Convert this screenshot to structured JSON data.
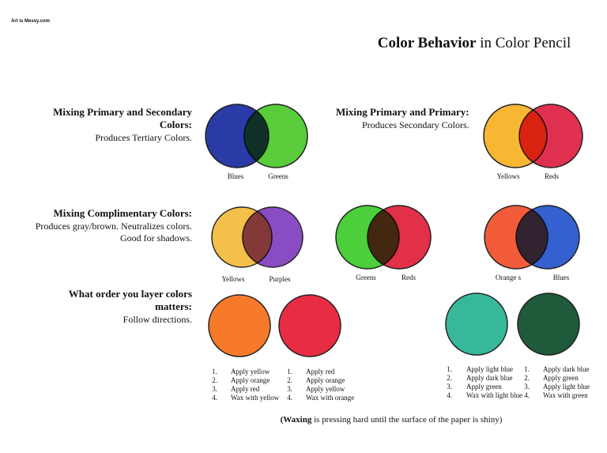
{
  "watermark": "Art is Messy.com",
  "title": {
    "bold": "Color Behavior",
    "rest": "in Color Pencil"
  },
  "sections": [
    {
      "heading": [
        "Mixing Primary and Secondary",
        "Colors:"
      ],
      "subtext": [
        "Produces Tertiary Colors."
      ]
    },
    {
      "heading": [
        "Mixing Primary and Primary:"
      ],
      "subtext": [
        "Produces Secondary Colors."
      ]
    },
    {
      "heading": [
        "Mixing Complimentary Colors:"
      ],
      "subtext": [
        "Produces gray/brown. Neutralizes colors.",
        "Good for shadows."
      ]
    },
    {
      "heading": [
        "What order you layer colors",
        "matters:"
      ],
      "subtext": [
        "Follow directions."
      ]
    }
  ],
  "diagrams": [
    {
      "labels": [
        "Blues",
        "Greens"
      ]
    },
    {
      "labels": [
        "Yellows",
        "Reds"
      ]
    },
    {
      "labels": [
        "Yellows",
        "Purples"
      ]
    },
    {
      "labels": [
        "Greens",
        "Reds"
      ]
    },
    {
      "labels": [
        "Orange s",
        "Blues"
      ]
    }
  ],
  "lists": [
    {
      "items": [
        [
          "1.",
          "Apply yellow"
        ],
        [
          "2.",
          "Apply orange"
        ],
        [
          "3.",
          "Apply red"
        ],
        [
          "4.",
          "Wax with yellow"
        ]
      ]
    },
    {
      "items": [
        [
          "1.",
          "Apply red"
        ],
        [
          "2.",
          "Apply orange"
        ],
        [
          "3.",
          "Apply yellow"
        ],
        [
          "4.",
          "Wax with orange"
        ]
      ]
    },
    {
      "items": [
        [
          "1.",
          "Apply light blue"
        ],
        [
          "2.",
          "Apply dark blue"
        ],
        [
          "3.",
          "Apply green"
        ],
        [
          "4.",
          "Wax with light blue"
        ]
      ]
    },
    {
      "items": [
        [
          "1.",
          "Apply dark blue"
        ],
        [
          "2.",
          "Apply green"
        ],
        [
          "3.",
          "Apply light blue"
        ],
        [
          "4.",
          "Wax with green"
        ]
      ]
    }
  ],
  "footnote": {
    "bold": "(Waxing",
    "rest": "is pressing hard until the surface of the paper is shiny)"
  }
}
